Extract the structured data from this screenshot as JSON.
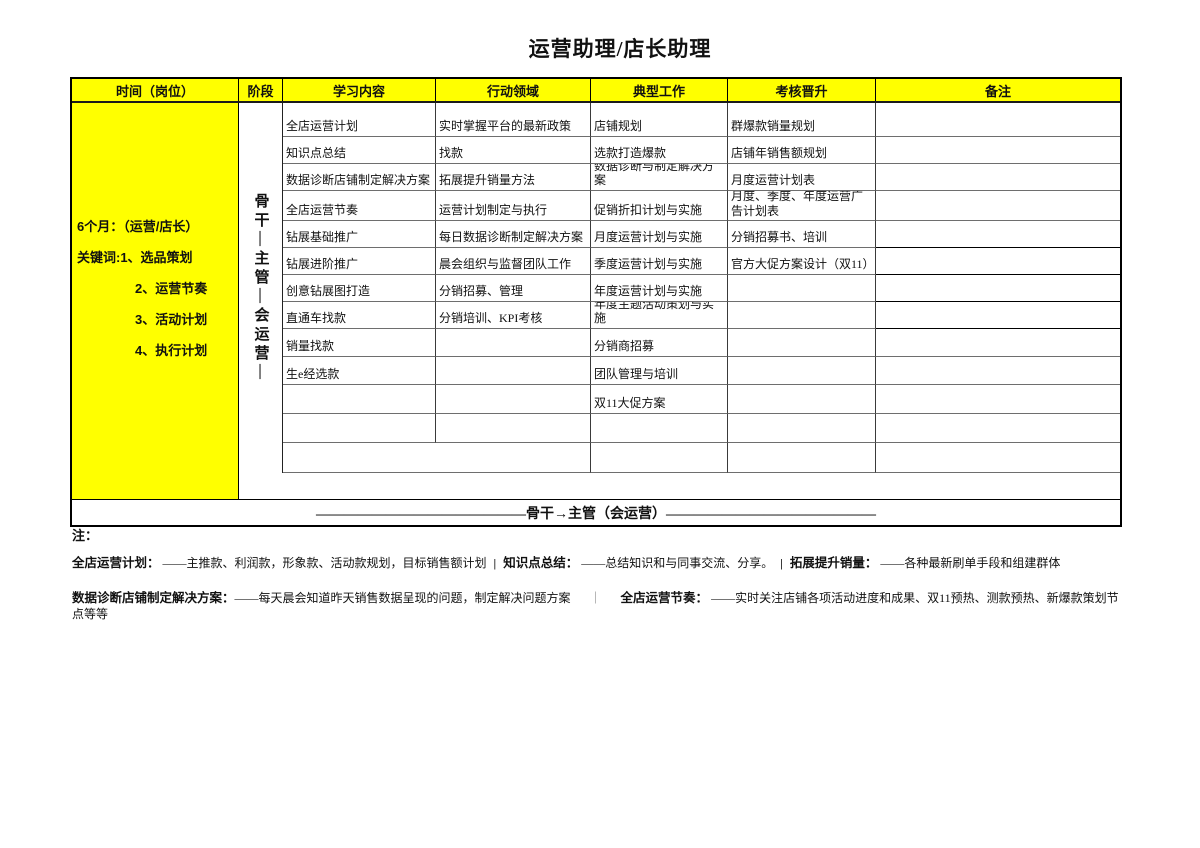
{
  "title": "运营助理/店长助理",
  "colors": {
    "highlight": "#FFFF00"
  },
  "table": {
    "headers": [
      "时间（岗位）",
      "阶段",
      "学习内容",
      "行动领域",
      "典型工作",
      "考核晋升",
      "备注"
    ],
    "time_cell": {
      "lines": [
        "6个月：（运营/店长）",
        "关键词:1、选品策划",
        "2、运营节奏",
        "3、活动计划",
        "4、执行计划"
      ]
    },
    "stage_label": "骨干—主管—会运营—",
    "columns": {
      "learning": [
        "全店运营计划",
        "知识点总结",
        "数据诊断店铺制定解决方案",
        "全店运营节奏",
        "钻展基础推广",
        "钻展进阶推广",
        "创意钻展图打造",
        "直通车找款",
        "销量找款",
        "生e经选款",
        "",
        "",
        ""
      ],
      "action": [
        "实时掌握平台的最新政策",
        "找款",
        "拓展提升销量方法",
        "运营计划制定与执行",
        "每日数据诊断制定解决方案",
        "晨会组织与监督团队工作",
        "分销招募、管理",
        "分销培训、KPI考核",
        "",
        "",
        "",
        "",
        ""
      ],
      "typical": [
        "店铺规划",
        "选款打造爆款",
        "数据诊断与制定解决方案",
        "促销折扣计划与实施",
        "月度运营计划与实施",
        "季度运营计划与实施",
        "年度运营计划与实施",
        "年度主题活动策划与实施",
        "分销商招募",
        "团队管理与培训",
        "双11大促方案",
        "",
        ""
      ],
      "assessment": [
        "群爆款销量规划",
        "店铺年销售额规划",
        "月度运营计划表",
        "月度、季度、年度运营广告计划表",
        "分销招募书、培训",
        "官方大促方案设计（双11）",
        "",
        "",
        "",
        "",
        "",
        "",
        ""
      ],
      "remarks": [
        "",
        "",
        "",
        "",
        "",
        "",
        "",
        "",
        "",
        "",
        "",
        "",
        ""
      ]
    },
    "footer_arrow": "———————————————骨干→主管（会运营）———————————————"
  },
  "notes": {
    "label": "注：",
    "line1": {
      "k1": "全店运营计划：",
      "v1": " ——主推款、利润款，形象款、活动款规划，目标销售额计划",
      "sep1": "|",
      "k2": "知识点总结：",
      "v2": " ——总结知识和与同事交流、分享。",
      "sep2": "|",
      "k3": "拓展提升销量：",
      "v3": " ——各种最新刷单手段和组建群体"
    },
    "line2": {
      "k1": "数据诊断店铺制定解决方案：",
      "v1": "——每天晨会知道昨天销售数据呈现的问题，制定解决问题方案",
      "sep": "｜",
      "k2": "全店运营节奏：",
      "v2": " ——实时关注店铺各项活动进度和成果、双11预热、测款预热、新爆款策划节点等等"
    }
  }
}
